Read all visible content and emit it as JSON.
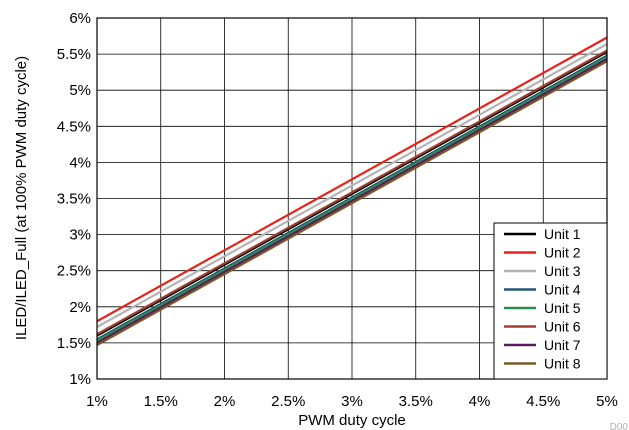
{
  "chart_data": {
    "type": "line",
    "title": "",
    "xlabel": "PWM duty cycle",
    "ylabel": "ILED/ILED_Full (at 100% PWM duty cycle)",
    "xlim": [
      1,
      5
    ],
    "ylim": [
      1,
      6
    ],
    "x_ticks": [
      1,
      1.5,
      2,
      2.5,
      3,
      3.5,
      4,
      4.5,
      5
    ],
    "x_tick_labels": [
      "1%",
      "1.5%",
      "2%",
      "2.5%",
      "3%",
      "3.5%",
      "4%",
      "4.5%",
      "5%"
    ],
    "y_ticks": [
      1,
      1.5,
      2,
      2.5,
      3,
      3.5,
      4,
      4.5,
      5,
      5.5,
      6
    ],
    "y_tick_labels": [
      "1%",
      "1.5%",
      "2%",
      "2.5%",
      "3%",
      "3.5%",
      "4%",
      "4.5%",
      "5%",
      "5.5%",
      "6%"
    ],
    "grid": true,
    "legend_position": "bottom-right",
    "corner_id": "D00",
    "series": [
      {
        "name": "Unit 1",
        "color": "#000000",
        "x": [
          1,
          5
        ],
        "y": [
          1.6,
          5.53
        ]
      },
      {
        "name": "Unit 2",
        "color": "#e8211b",
        "x": [
          1,
          5
        ],
        "y": [
          1.8,
          5.73
        ]
      },
      {
        "name": "Unit 3",
        "color": "#b4b4b4",
        "x": [
          1,
          5
        ],
        "y": [
          1.72,
          5.64
        ]
      },
      {
        "name": "Unit 4",
        "color": "#1f5a78",
        "x": [
          1,
          5
        ],
        "y": [
          1.55,
          5.48
        ]
      },
      {
        "name": "Unit 5",
        "color": "#2d8a4e",
        "x": [
          1,
          5
        ],
        "y": [
          1.53,
          5.46
        ]
      },
      {
        "name": "Unit 6",
        "color": "#a0402c",
        "x": [
          1,
          5
        ],
        "y": [
          1.62,
          5.55
        ]
      },
      {
        "name": "Unit 7",
        "color": "#5a1a5e",
        "x": [
          1,
          5
        ],
        "y": [
          1.5,
          5.43
        ]
      },
      {
        "name": "Unit 8",
        "color": "#7a5a2a",
        "x": [
          1,
          5
        ],
        "y": [
          1.47,
          5.4
        ]
      }
    ]
  }
}
